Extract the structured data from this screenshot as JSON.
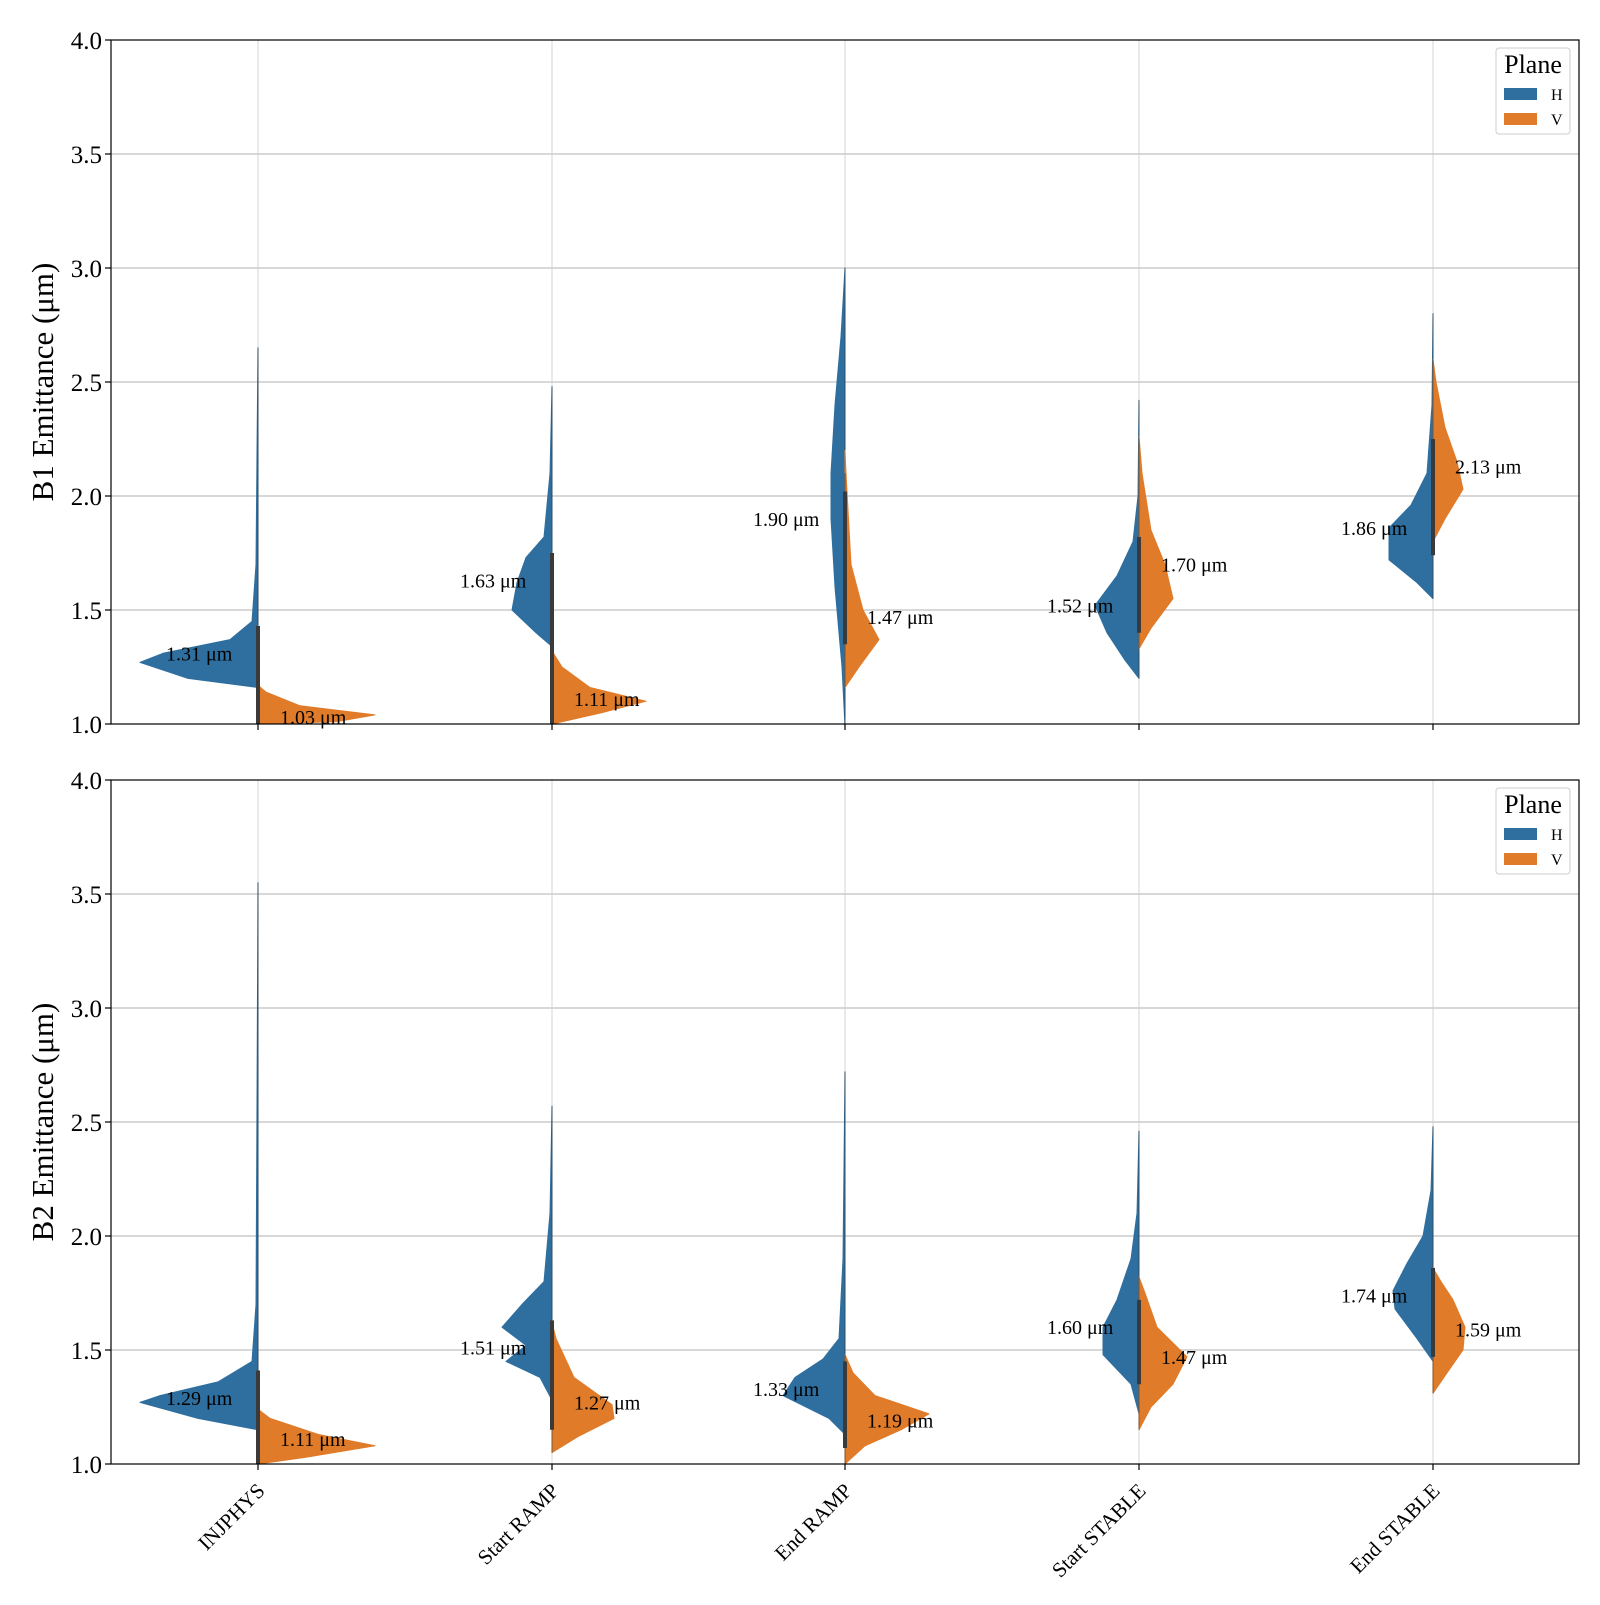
{
  "chart_data": [
    {
      "type": "violin",
      "ylabel": "B1 Emittance (μm)",
      "ylim": [
        1.0,
        4.0
      ],
      "yticks": [
        "1.0",
        "1.5",
        "2.0",
        "2.5",
        "3.0",
        "3.5",
        "4.0"
      ],
      "grid": true,
      "legend": {
        "title": "Plane",
        "placement": "top-right",
        "entries": [
          "H",
          "V"
        ]
      },
      "categories": [
        "INJPHYS",
        "Start RAMP",
        "End RAMP",
        "Start STABLE",
        "End STABLE"
      ],
      "series": [
        {
          "name": "H",
          "color": "#2f6f9f",
          "medians": [
            1.31,
            1.63,
            1.9,
            1.52,
            1.86
          ],
          "labels": [
            "1.31 μm",
            "1.63 μm",
            "1.90 μm",
            "1.52 μm",
            "1.86 μm"
          ],
          "min": [
            1.16,
            1.34,
            0.99,
            1.2,
            1.55
          ],
          "max": [
            2.65,
            2.48,
            3.0,
            2.42,
            2.8
          ]
        },
        {
          "name": "V",
          "color": "#e07b2a",
          "medians": [
            1.03,
            1.11,
            1.47,
            1.7,
            2.13
          ],
          "labels": [
            "1.03 μm",
            "1.11 μm",
            "1.47 μm",
            "1.70 μm",
            "2.13 μm"
          ],
          "min": [
            1.0,
            1.0,
            1.16,
            1.33,
            1.8
          ],
          "max": [
            1.17,
            1.32,
            2.1,
            2.26,
            2.6
          ]
        }
      ]
    },
    {
      "type": "violin",
      "ylabel": "B2 Emittance (μm)",
      "ylim": [
        1.0,
        4.0
      ],
      "yticks": [
        "1.0",
        "1.5",
        "2.0",
        "2.5",
        "3.0",
        "3.5",
        "4.0"
      ],
      "grid": true,
      "legend": {
        "title": "Plane",
        "placement": "top-right",
        "entries": [
          "H",
          "V"
        ]
      },
      "categories": [
        "INJPHYS",
        "Start RAMP",
        "End RAMP",
        "Start STABLE",
        "End STABLE"
      ],
      "series": [
        {
          "name": "H",
          "color": "#2f6f9f",
          "medians": [
            1.29,
            1.51,
            1.33,
            1.6,
            1.74
          ],
          "labels": [
            "1.29 μm",
            "1.51 μm",
            "1.33 μm",
            "1.60 μm",
            "1.74 μm"
          ],
          "min": [
            1.15,
            1.28,
            1.13,
            1.22,
            1.45
          ],
          "max": [
            3.55,
            2.57,
            2.72,
            2.46,
            2.48
          ]
        },
        {
          "name": "V",
          "color": "#e07b2a",
          "medians": [
            1.11,
            1.27,
            1.19,
            1.47,
            1.59
          ],
          "labels": [
            "1.11 μm",
            "1.27 μm",
            "1.19 μm",
            "1.47 μm",
            "1.59 μm"
          ],
          "min": [
            1.0,
            1.05,
            1.0,
            1.15,
            1.31
          ],
          "max": [
            1.24,
            1.62,
            1.48,
            1.82,
            1.86
          ]
        }
      ]
    }
  ]
}
